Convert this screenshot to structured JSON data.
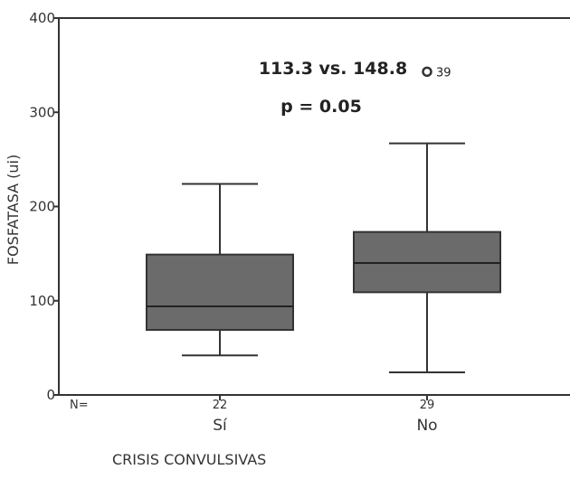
{
  "chart_data": {
    "type": "box",
    "ylabel": "FOSFATASA (ui)",
    "xlabel": "CRISIS CONVULSIVAS",
    "ylim": [
      0,
      400
    ],
    "yticks": [
      "0",
      "100",
      "200",
      "300",
      "400"
    ],
    "n_prefix": "N=",
    "categories": [
      {
        "label": "Sí",
        "n": "22",
        "whisker_low": 42,
        "q1": 69,
        "median": 94,
        "q3": 149,
        "whisker_high": 224
      },
      {
        "label": "No",
        "n": "29",
        "whisker_low": 24,
        "q1": 109,
        "median": 140,
        "q3": 173,
        "whisker_high": 267,
        "outlier": {
          "value": 345,
          "label": "39"
        }
      }
    ],
    "annotations": [
      "113.3 vs. 148.8",
      "p = 0.05"
    ],
    "box_color": "#6b6b6b",
    "grid": false
  }
}
